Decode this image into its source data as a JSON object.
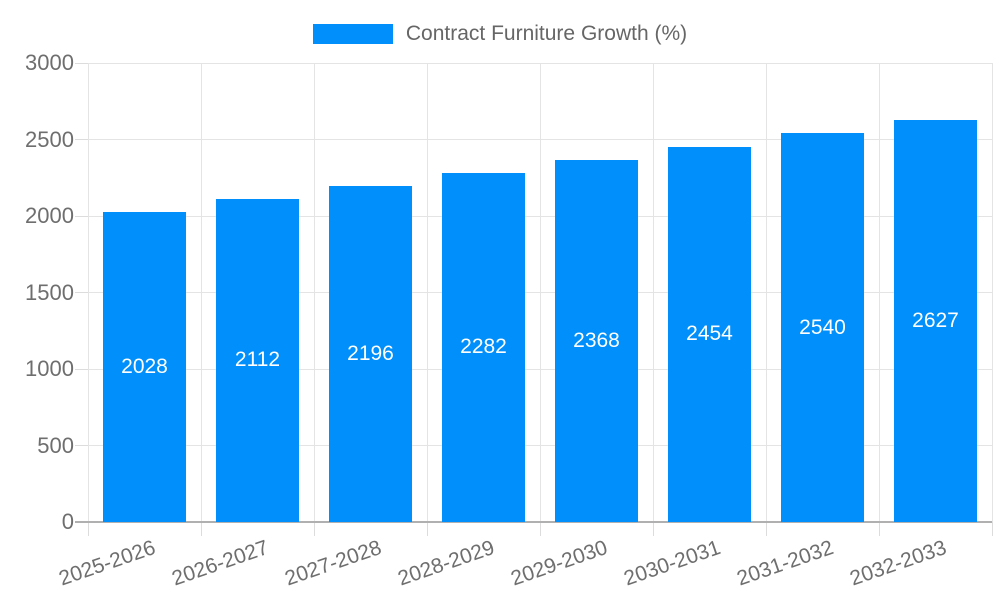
{
  "legend": {
    "label": "Contract Furniture Growth (%)"
  },
  "colors": {
    "bar": "#008FFB",
    "grid": "#e4e4e4",
    "axis_line": "#b0b0b0",
    "tick": "#dcdcdc",
    "axis_text": "#6e6e6e",
    "legend_text": "#666666",
    "data_label_text": "#ffffff",
    "background": "#ffffff"
  },
  "chart_data": {
    "type": "bar",
    "title": "Contract Furniture Growth (%)",
    "categories": [
      "2025-2026",
      "2026-2027",
      "2027-2028",
      "2028-2029",
      "2029-2030",
      "2030-2031",
      "2031-2032",
      "2032-2033"
    ],
    "series": [
      {
        "name": "Contract Furniture Growth (%)",
        "values": [
          2028,
          2112,
          2196,
          2282,
          2368,
          2454,
          2540,
          2627
        ]
      }
    ],
    "values": [
      2028,
      2112,
      2196,
      2282,
      2368,
      2454,
      2540,
      2627
    ],
    "data_labels": [
      "2028",
      "2112",
      "2196",
      "2282",
      "2368",
      "2454",
      "2540",
      "2627"
    ],
    "xlabel": "",
    "ylabel": "",
    "ylim": [
      0,
      3000
    ],
    "y_ticks": [
      0,
      500,
      1000,
      1500,
      2000,
      2500,
      3000
    ],
    "grid": true,
    "grid_vertical": true,
    "legend_position": "top",
    "data_label_position": "inside-center",
    "x_label_rotation_deg": -19
  }
}
